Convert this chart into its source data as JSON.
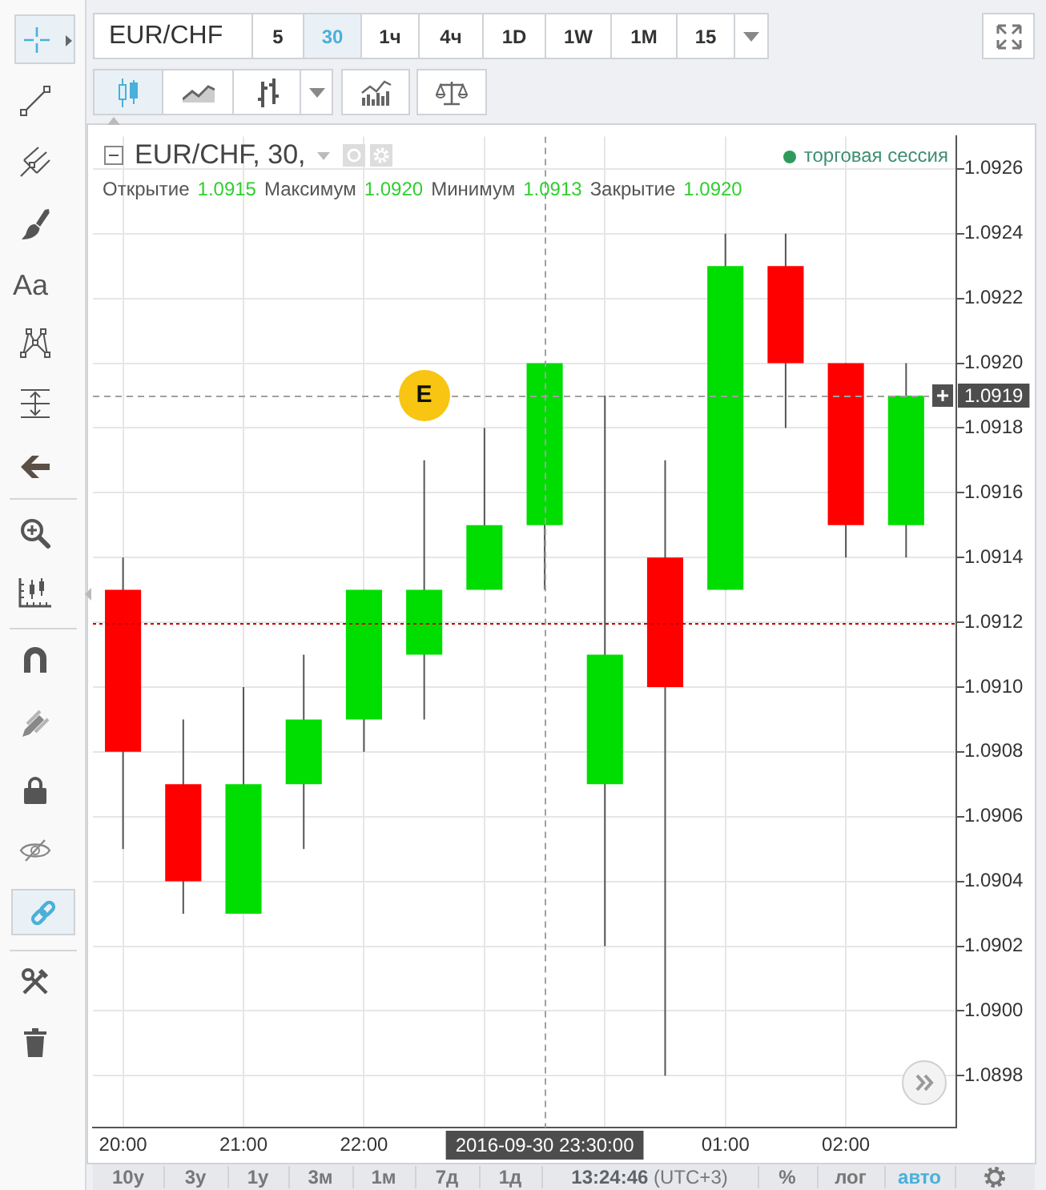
{
  "chart_data": {
    "type": "candlestick",
    "title": "EUR/CHF, 30,",
    "subtitle": "Открытие 1.0915 Максимум 1.0920 Минимум 1.0913 Закрытие 1.0920",
    "annotations": [
      "EUR/CHF",
      "5",
      "30",
      "1ч",
      "4ч",
      "1D",
      "1W",
      "1M",
      "15",
      "торговая сессия",
      "Aa",
      {
        "text": "E",
        "x": "2016-09-30T22:30",
        "y": 1.0919
      },
      "10y",
      "3y",
      "1y",
      "3м",
      "1м",
      "7д",
      "1д",
      "13:24:46 (UTC+3)",
      "%",
      "лог",
      "авто"
    ],
    "x": [
      "2016-09-30T20:00",
      "2016-09-30T20:30",
      "2016-09-30T21:00",
      "2016-09-30T21:30",
      "2016-09-30T22:00",
      "2016-09-30T22:30",
      "2016-09-30T23:00",
      "2016-09-30T23:30",
      "2016-10-01T00:00",
      "2016-10-01T00:30",
      "2016-10-01T01:00",
      "2016-10-01T01:30",
      "2016-10-01T02:00",
      "2016-10-01T02:30"
    ],
    "ohlc": [
      [
        1.0913,
        1.0914,
        1.0905,
        1.0908
      ],
      [
        1.0907,
        1.0909,
        1.0903,
        1.0904
      ],
      [
        1.0903,
        1.091,
        1.0903,
        1.0907
      ],
      [
        1.0907,
        1.0911,
        1.0905,
        1.0909
      ],
      [
        1.0909,
        1.0913,
        1.0908,
        1.0913
      ],
      [
        1.0911,
        1.0917,
        1.0909,
        1.0913
      ],
      [
        1.0913,
        1.0918,
        1.0913,
        1.0915
      ],
      [
        1.0915,
        1.092,
        1.0913,
        1.092
      ],
      [
        1.0907,
        1.0919,
        1.0902,
        1.0911
      ],
      [
        1.0914,
        1.0917,
        1.0898,
        1.091
      ],
      [
        1.0913,
        1.0924,
        1.0913,
        1.0923
      ],
      [
        1.0923,
        1.0924,
        1.0918,
        1.092
      ],
      [
        1.092,
        1.092,
        1.0914,
        1.0915
      ],
      [
        1.0915,
        1.092,
        1.0914,
        1.0919
      ]
    ],
    "colors": [
      "#ff0000",
      "#ff0000",
      "#00dd00",
      "#00dd00",
      "#00dd00",
      "#00dd00",
      "#00dd00",
      "#00dd00",
      "#00dd00",
      "#ff0000",
      "#00dd00",
      "#ff0000",
      "#ff0000",
      "#00dd00"
    ],
    "xlim": [
      "2016-09-30T19:45",
      "2016-10-01T02:55"
    ],
    "xticks": [
      {
        "value": "2016-09-30T20:00",
        "label": "20:00"
      },
      {
        "value": "2016-09-30T21:00",
        "label": "21:00"
      },
      {
        "value": "2016-09-30T22:00",
        "label": "22:00"
      },
      {
        "value": "2016-09-30T23:00",
        "label": null
      },
      {
        "value": "2016-10-01T00:00",
        "label": null
      },
      {
        "value": "2016-10-01T01:00",
        "label": "01:00"
      },
      {
        "value": "2016-10-01T02:00",
        "label": "02:00"
      }
    ],
    "ylim": [
      1.08964,
      1.0927
    ],
    "yticks": [
      1.0898,
      {
        "value": 1.09,
        "label": "1.0900"
      },
      1.0902,
      1.0904,
      1.0906,
      1.0908,
      {
        "value": 1.091,
        "label": "1.0910"
      },
      1.0912,
      1.0914,
      1.0916,
      1.0918,
      {
        "value": 1.092,
        "label": "1.0920"
      },
      1.0922,
      1.0924,
      1.0926
    ],
    "grid": true,
    "ref_lines": [
      {
        "axis": "y",
        "value": 1.0912,
        "color": "#cc0000",
        "line_style": "dotted"
      },
      {
        "axis": "y",
        "value": 1.0919,
        "label": "1.0919",
        "color": "#a0a0a0",
        "line_style": "dashed"
      },
      {
        "axis": "x",
        "value": "2016-09-30T23:30",
        "label": "2016-09-30 23:30:00",
        "color": "#a0a0a0",
        "line_style": "dashed"
      }
    ]
  }
}
